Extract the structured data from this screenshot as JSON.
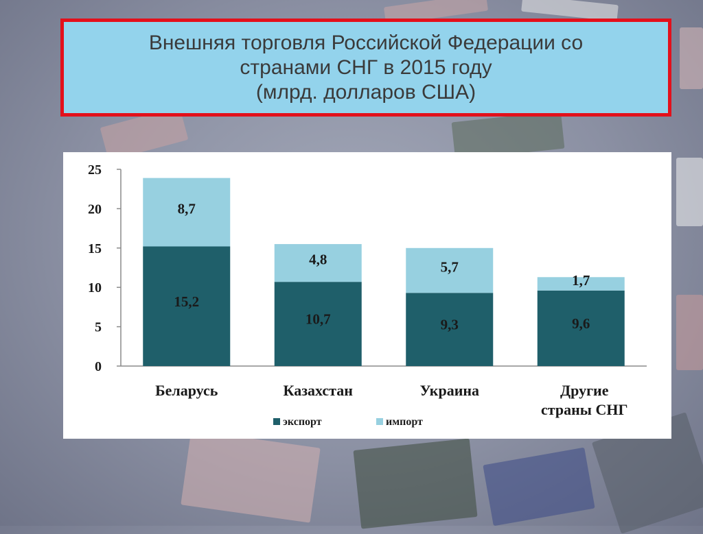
{
  "title": {
    "line1": "Внешняя торговля Российской Федерации со",
    "line2": "странами СНГ в  2015 году",
    "line3": "(млрд. долларов США)"
  },
  "colors": {
    "title_bg": "#93d3ec",
    "title_border": "#e3101b",
    "export": "#1f5f6a",
    "import": "#97d0e0"
  },
  "chart_data": {
    "type": "bar",
    "stacked": true,
    "categories": [
      [
        "Беларусь"
      ],
      [
        "Казахстан"
      ],
      [
        "Украина"
      ],
      [
        "Другие",
        "страны СНГ"
      ]
    ],
    "series": [
      {
        "name": "экспорт",
        "values": [
          15.2,
          10.7,
          9.3,
          9.6
        ],
        "labels": [
          "15,2",
          "10,7",
          "9,3",
          "9,6"
        ]
      },
      {
        "name": "импорт",
        "values": [
          8.7,
          4.8,
          5.7,
          1.7
        ],
        "labels": [
          "8,7",
          "4,8",
          "5,7",
          "1,7"
        ]
      }
    ],
    "ylim": [
      0,
      25
    ],
    "yticks": [
      0,
      5,
      10,
      15,
      20,
      25
    ],
    "grid": false,
    "legend_position": "bottom"
  }
}
